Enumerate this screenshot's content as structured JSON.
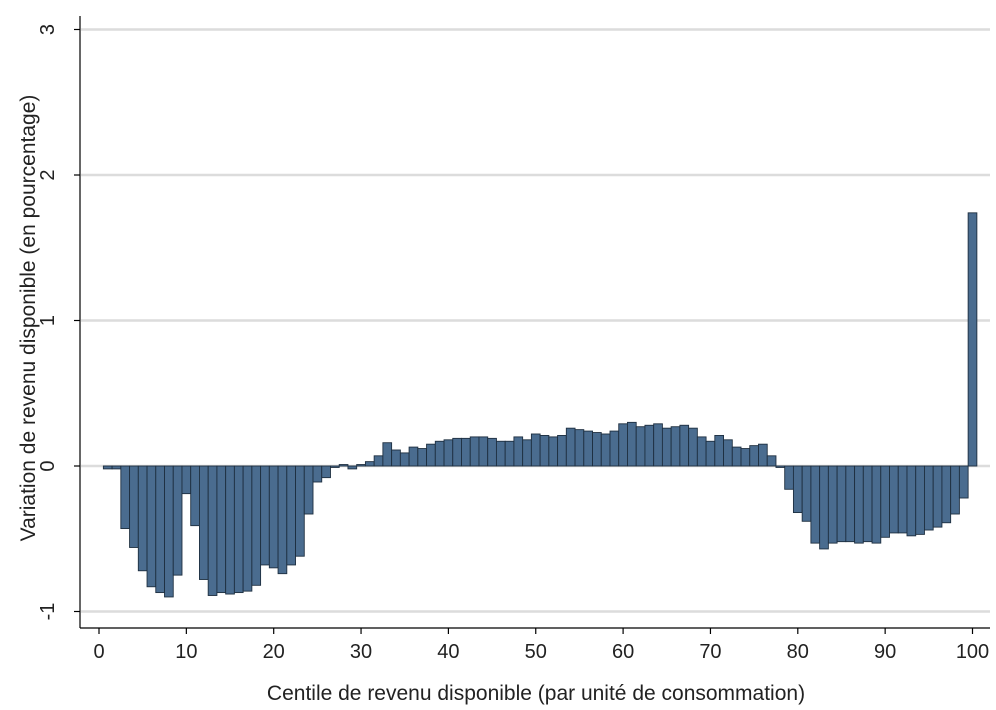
{
  "chart_data": {
    "type": "bar",
    "xlabel": "Centile de revenu disponible (par unité de consommation)",
    "ylabel": "Variation de revenu disponible (en pourcentage)",
    "xlim": [
      0,
      100
    ],
    "ylim": [
      -1,
      3
    ],
    "grid": true,
    "bar_color": "#4a6c8f",
    "xticks": [
      0,
      10,
      20,
      30,
      40,
      50,
      60,
      70,
      80,
      90,
      100
    ],
    "yticks": [
      -1,
      0,
      1,
      2,
      3
    ],
    "x": [
      1,
      2,
      3,
      4,
      5,
      6,
      7,
      8,
      9,
      10,
      11,
      12,
      13,
      14,
      15,
      16,
      17,
      18,
      19,
      20,
      21,
      22,
      23,
      24,
      25,
      26,
      27,
      28,
      29,
      30,
      31,
      32,
      33,
      34,
      35,
      36,
      37,
      38,
      39,
      40,
      41,
      42,
      43,
      44,
      45,
      46,
      47,
      48,
      49,
      50,
      51,
      52,
      53,
      54,
      55,
      56,
      57,
      58,
      59,
      60,
      61,
      62,
      63,
      64,
      65,
      66,
      67,
      68,
      69,
      70,
      71,
      72,
      73,
      74,
      75,
      76,
      77,
      78,
      79,
      80,
      81,
      82,
      83,
      84,
      85,
      86,
      87,
      88,
      89,
      90,
      91,
      92,
      93,
      94,
      95,
      96,
      97,
      98,
      99,
      100
    ],
    "values": [
      -0.02,
      -0.02,
      -0.43,
      -0.56,
      -0.72,
      -0.83,
      -0.87,
      -0.9,
      -0.75,
      -0.19,
      -0.41,
      -0.78,
      -0.89,
      -0.87,
      -0.88,
      -0.87,
      -0.86,
      -0.82,
      -0.68,
      -0.7,
      -0.74,
      -0.68,
      -0.62,
      -0.33,
      -0.11,
      -0.08,
      -0.01,
      0.01,
      -0.02,
      0.01,
      0.03,
      0.07,
      0.16,
      0.11,
      0.09,
      0.13,
      0.12,
      0.15,
      0.17,
      0.18,
      0.19,
      0.19,
      0.2,
      0.2,
      0.19,
      0.17,
      0.17,
      0.2,
      0.18,
      0.22,
      0.21,
      0.2,
      0.21,
      0.26,
      0.25,
      0.24,
      0.23,
      0.22,
      0.24,
      0.29,
      0.3,
      0.27,
      0.28,
      0.29,
      0.26,
      0.27,
      0.28,
      0.26,
      0.2,
      0.17,
      0.21,
      0.18,
      0.13,
      0.12,
      0.14,
      0.15,
      0.07,
      -0.01,
      -0.16,
      -0.32,
      -0.38,
      -0.53,
      -0.57,
      -0.53,
      -0.52,
      -0.52,
      -0.53,
      -0.52,
      -0.53,
      -0.49,
      -0.46,
      -0.46,
      -0.48,
      -0.47,
      -0.44,
      -0.42,
      -0.39,
      -0.33,
      -0.22,
      1.74
    ]
  }
}
